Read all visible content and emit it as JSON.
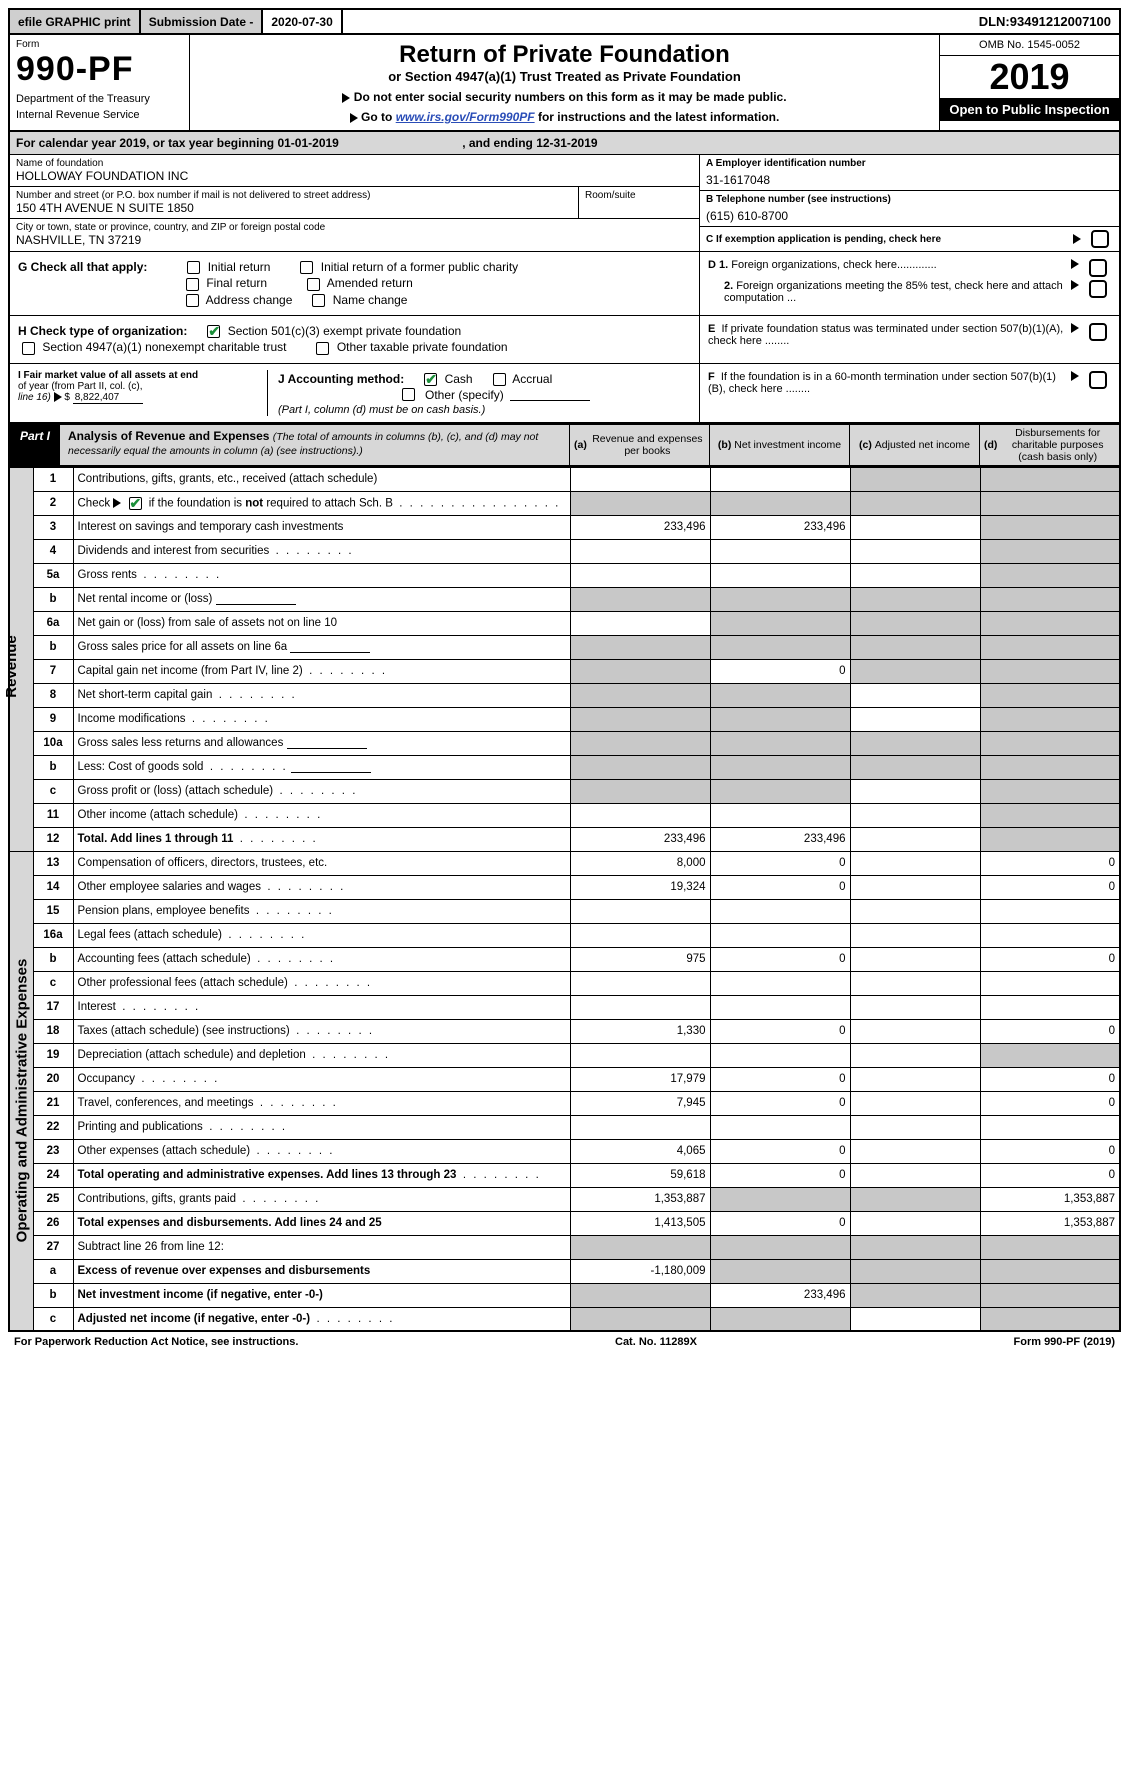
{
  "topbar": {
    "efile": "efile GRAPHIC print",
    "subdate_label": "Submission Date - ",
    "subdate_value": "2020-07-30",
    "dln_label": "DLN: ",
    "dln_value": "93491212007100"
  },
  "header": {
    "form_label": "Form",
    "form_no": "990-PF",
    "dept1": "Department of the Treasury",
    "dept2": "Internal Revenue Service",
    "title": "Return of Private Foundation",
    "subtitle": "or Section 4947(a)(1) Trust Treated as Private Foundation",
    "instr1": "Do not enter social security numbers on this form as it may be made public.",
    "instr2a": "Go to ",
    "instr2_link": "www.irs.gov/Form990PF",
    "instr2b": " for instructions and the latest information.",
    "omb": "OMB No. 1545-0052",
    "year": "2019",
    "open": "Open to Public Inspection"
  },
  "cal": {
    "prefix": "For calendar year 2019, or tax year beginning ",
    "begin": "01-01-2019",
    "mid": ", and ending ",
    "end": "12-31-2019"
  },
  "entity": {
    "name_label": "Name of foundation",
    "name": "HOLLOWAY FOUNDATION INC",
    "addr_label": "Number and street (or P.O. box number if mail is not delivered to street address)",
    "addr": "150 4TH AVENUE N SUITE 1850",
    "room_label": "Room/suite",
    "city_label": "City or town, state or province, country, and ZIP or foreign postal code",
    "city": "NASHVILLE, TN  37219",
    "ein_label": "A Employer identification number",
    "ein": "31-1617048",
    "tel_label": "B Telephone number (see instructions)",
    "tel": "(615) 610-8700",
    "c_label": "C If exemption application is pending, check here"
  },
  "g": {
    "label": "G Check all that apply:",
    "opts": [
      "Initial return",
      "Initial return of a former public charity",
      "Final return",
      "Amended return",
      "Address change",
      "Name change"
    ]
  },
  "h": {
    "label": "H Check type of organization:",
    "opt1": "Section 501(c)(3) exempt private foundation",
    "opt2": "Section 4947(a)(1) nonexempt charitable trust",
    "opt3": "Other taxable private foundation"
  },
  "i": {
    "label1": "I Fair market value of all assets at end",
    "label2": "of year (from Part II, col. (c),",
    "label3": "line 16)",
    "val": "8,822,407"
  },
  "j": {
    "label": "J Accounting method:",
    "cash": "Cash",
    "accrual": "Accrual",
    "other": "Other (specify)",
    "note": "(Part I, column (d) must be on cash basis.)"
  },
  "d": {
    "d1": "D 1. Foreign organizations, check here",
    "d2a": "2. Foreign organizations meeting the 85%",
    "d2b": "test, check here and attach computation ...",
    "e1": "E  If private foundation status was terminated",
    "e2": "under section 507(b)(1)(A), check here ........",
    "f1": "F  If the foundation is in a 60-month termination",
    "f2": "under section 507(b)(1)(B), check here ........"
  },
  "part": {
    "tag": "Part I",
    "title": "Analysis of Revenue and Expenses",
    "note1": "(The total of amounts in columns (b), (c), and (d) may not necessarily equal the amounts in column (a) (see instructions).)",
    "col_a": "(a)  Revenue and expenses per books",
    "col_b": "(b)  Net investment income",
    "col_c": "(c)  Adjusted net income",
    "col_d": "(d)  Disbursements for charitable purposes (cash basis only)"
  },
  "side": {
    "rev": "Revenue",
    "exp": "Operating and Administrative Expenses"
  },
  "rows": [
    {
      "n": "1",
      "t": "Contributions, gifts, grants, etc., received (attach schedule)",
      "a": "",
      "b": "",
      "c": "sh",
      "d": "sh"
    },
    {
      "n": "2",
      "t": "Check ▶ ☑ if the foundation is not required to attach Sch. B",
      "dots": true,
      "a": "sh",
      "b": "sh",
      "c": "sh",
      "d": "sh",
      "special": "check"
    },
    {
      "n": "3",
      "t": "Interest on savings and temporary cash investments",
      "a": "233,496",
      "b": "233,496",
      "c": "",
      "d": "sh"
    },
    {
      "n": "4",
      "t": "Dividends and interest from securities",
      "dots": true,
      "a": "",
      "b": "",
      "c": "",
      "d": "sh"
    },
    {
      "n": "5a",
      "t": "Gross rents",
      "dots": true,
      "a": "",
      "b": "",
      "c": "",
      "d": "sh"
    },
    {
      "n": "b",
      "t": "Net rental income or (loss)",
      "input": true,
      "a": "sh",
      "b": "sh",
      "c": "sh",
      "d": "sh"
    },
    {
      "n": "6a",
      "t": "Net gain or (loss) from sale of assets not on line 10",
      "a": "",
      "b": "sh",
      "c": "sh",
      "d": "sh"
    },
    {
      "n": "b",
      "t": "Gross sales price for all assets on line 6a",
      "input": true,
      "a": "sh",
      "b": "sh",
      "c": "sh",
      "d": "sh"
    },
    {
      "n": "7",
      "t": "Capital gain net income (from Part IV, line 2)",
      "dots": true,
      "a": "sh",
      "b": "0",
      "c": "sh",
      "d": "sh"
    },
    {
      "n": "8",
      "t": "Net short-term capital gain",
      "dots": true,
      "a": "sh",
      "b": "sh",
      "c": "",
      "d": "sh"
    },
    {
      "n": "9",
      "t": "Income modifications",
      "dots": true,
      "a": "sh",
      "b": "sh",
      "c": "",
      "d": "sh"
    },
    {
      "n": "10a",
      "t": "Gross sales less returns and allowances",
      "input": true,
      "a": "sh",
      "b": "sh",
      "c": "sh",
      "d": "sh"
    },
    {
      "n": "b",
      "t": "Less: Cost of goods sold",
      "dots": true,
      "input": true,
      "a": "sh",
      "b": "sh",
      "c": "sh",
      "d": "sh"
    },
    {
      "n": "c",
      "t": "Gross profit or (loss) (attach schedule)",
      "dots": true,
      "a": "sh",
      "b": "sh",
      "c": "",
      "d": "sh"
    },
    {
      "n": "11",
      "t": "Other income (attach schedule)",
      "dots": true,
      "a": "",
      "b": "",
      "c": "",
      "d": "sh"
    },
    {
      "n": "12",
      "t": "Total. Add lines 1 through 11",
      "dots": true,
      "bold": true,
      "a": "233,496",
      "b": "233,496",
      "c": "",
      "d": "sh"
    },
    {
      "n": "13",
      "t": "Compensation of officers, directors, trustees, etc.",
      "a": "8,000",
      "b": "0",
      "c": "",
      "d": "0"
    },
    {
      "n": "14",
      "t": "Other employee salaries and wages",
      "dots": true,
      "a": "19,324",
      "b": "0",
      "c": "",
      "d": "0"
    },
    {
      "n": "15",
      "t": "Pension plans, employee benefits",
      "dots": true,
      "a": "",
      "b": "",
      "c": "",
      "d": ""
    },
    {
      "n": "16a",
      "t": "Legal fees (attach schedule)",
      "dots": true,
      "a": "",
      "b": "",
      "c": "",
      "d": ""
    },
    {
      "n": "b",
      "t": "Accounting fees (attach schedule)",
      "dots": true,
      "a": "975",
      "b": "0",
      "c": "",
      "d": "0"
    },
    {
      "n": "c",
      "t": "Other professional fees (attach schedule)",
      "dots": true,
      "a": "",
      "b": "",
      "c": "",
      "d": ""
    },
    {
      "n": "17",
      "t": "Interest",
      "dots": true,
      "a": "",
      "b": "",
      "c": "",
      "d": ""
    },
    {
      "n": "18",
      "t": "Taxes (attach schedule) (see instructions)",
      "dots": true,
      "a": "1,330",
      "b": "0",
      "c": "",
      "d": "0"
    },
    {
      "n": "19",
      "t": "Depreciation (attach schedule) and depletion",
      "dots": true,
      "a": "",
      "b": "",
      "c": "",
      "d": "sh"
    },
    {
      "n": "20",
      "t": "Occupancy",
      "dots": true,
      "a": "17,979",
      "b": "0",
      "c": "",
      "d": "0"
    },
    {
      "n": "21",
      "t": "Travel, conferences, and meetings",
      "dots": true,
      "a": "7,945",
      "b": "0",
      "c": "",
      "d": "0"
    },
    {
      "n": "22",
      "t": "Printing and publications",
      "dots": true,
      "a": "",
      "b": "",
      "c": "",
      "d": ""
    },
    {
      "n": "23",
      "t": "Other expenses (attach schedule)",
      "dots": true,
      "a": "4,065",
      "b": "0",
      "c": "",
      "d": "0"
    },
    {
      "n": "24",
      "t": "Total operating and administrative expenses. Add lines 13 through 23",
      "dots": true,
      "bold": true,
      "a": "59,618",
      "b": "0",
      "c": "",
      "d": "0"
    },
    {
      "n": "25",
      "t": "Contributions, gifts, grants paid",
      "dots": true,
      "a": "1,353,887",
      "b": "sh",
      "c": "sh",
      "d": "1,353,887"
    },
    {
      "n": "26",
      "t": "Total expenses and disbursements. Add lines 24 and 25",
      "bold": true,
      "a": "1,413,505",
      "b": "0",
      "c": "",
      "d": "1,353,887"
    },
    {
      "n": "27",
      "t": "Subtract line 26 from line 12:",
      "a": "sh",
      "b": "sh",
      "c": "sh",
      "d": "sh"
    },
    {
      "n": "a",
      "t": "Excess of revenue over expenses and disbursements",
      "bold": true,
      "a": "-1,180,009",
      "b": "sh",
      "c": "sh",
      "d": "sh"
    },
    {
      "n": "b",
      "t": "Net investment income (if negative, enter -0-)",
      "bold": true,
      "a": "sh",
      "b": "233,496",
      "c": "sh",
      "d": "sh"
    },
    {
      "n": "c",
      "t": "Adjusted net income (if negative, enter -0-)",
      "bold": true,
      "dots": true,
      "a": "sh",
      "b": "sh",
      "c": "",
      "d": "sh"
    }
  ],
  "footer": {
    "left": "For Paperwork Reduction Act Notice, see instructions.",
    "mid": "Cat. No. 11289X",
    "right": "Form 990-PF (2019)"
  },
  "colors": {
    "shade": "#c8c8c8",
    "hdr_shade": "#d7d7d7",
    "link": "#2a4db7",
    "check": "#1b8f3a"
  },
  "col_widths": {
    "side": 24,
    "num": 40,
    "text": 430,
    "val": 150
  }
}
